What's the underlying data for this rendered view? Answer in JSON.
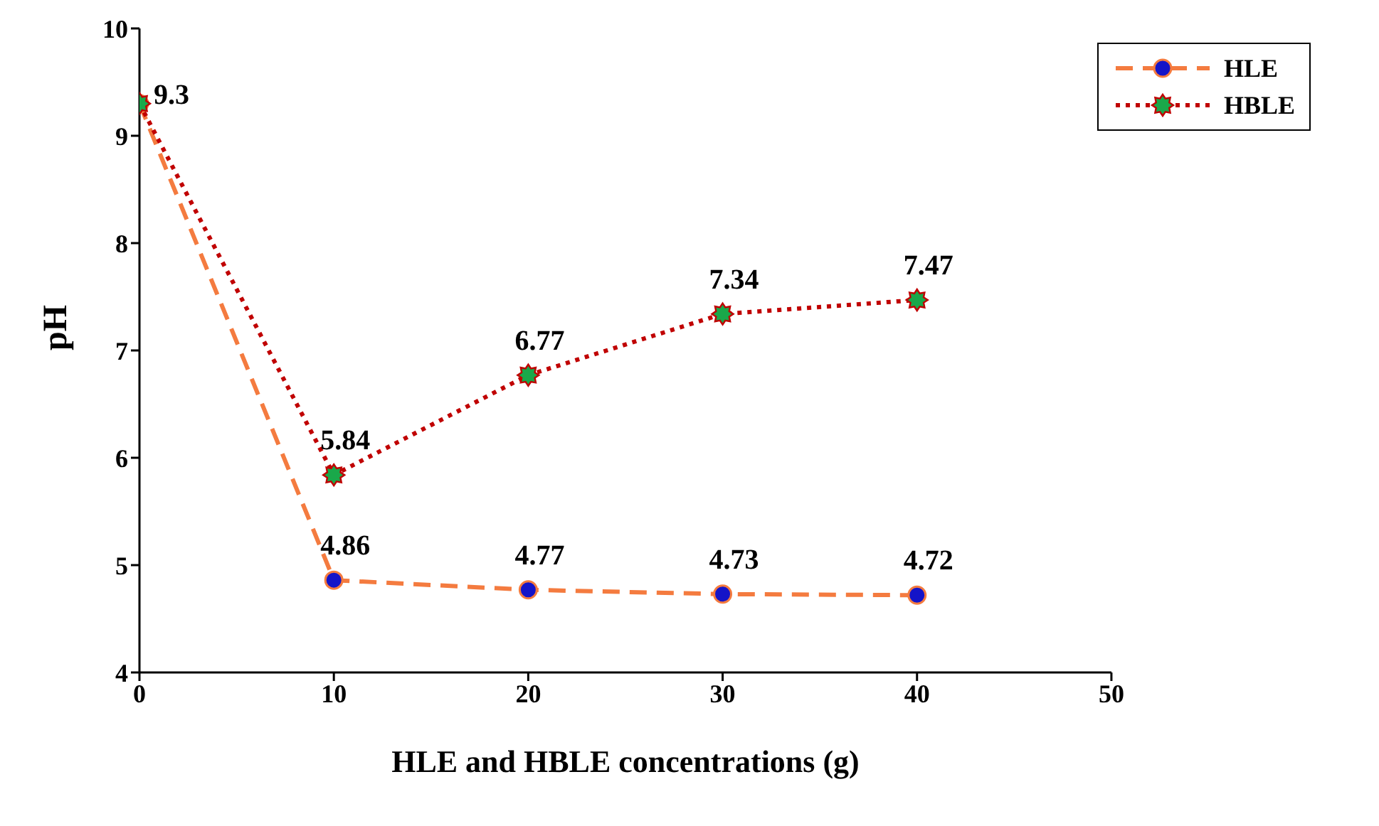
{
  "chart_data": {
    "type": "line",
    "xlabel": "HLE and HBLE concentrations (g)",
    "ylabel": "pH",
    "x": [
      0,
      10,
      20,
      30,
      40
    ],
    "series": [
      {
        "name": "HLE",
        "color": "#f47b3f",
        "colors": [
          "#1414c8",
          "#1414c8",
          "#1414c8",
          "#1414c8",
          "#1414c8"
        ],
        "marker": "circle",
        "line_style": "dashed",
        "values": [
          9.3,
          4.86,
          4.77,
          4.73,
          4.72
        ],
        "value_labels": [
          "9.3",
          "4.86",
          "4.77",
          "4.73",
          "4.72"
        ]
      },
      {
        "name": "HBLE",
        "color": "#c00000",
        "colors": [
          "#1aa84a",
          "#1aa84a",
          "#1aa84a",
          "#1aa84a",
          "#1aa84a"
        ],
        "marker": "star",
        "line_style": "dotted",
        "values": [
          9.3,
          5.84,
          6.77,
          7.34,
          7.47
        ],
        "value_labels": [
          null,
          "5.84",
          "6.77",
          "7.34",
          "7.47"
        ]
      }
    ],
    "xlim": [
      0,
      50
    ],
    "xticks": [
      0,
      10,
      20,
      30,
      40,
      50
    ],
    "ylim": [
      4,
      10
    ],
    "yticks": [
      4,
      5,
      6,
      7,
      8,
      9,
      10
    ],
    "grid": false,
    "legend": "top right"
  }
}
